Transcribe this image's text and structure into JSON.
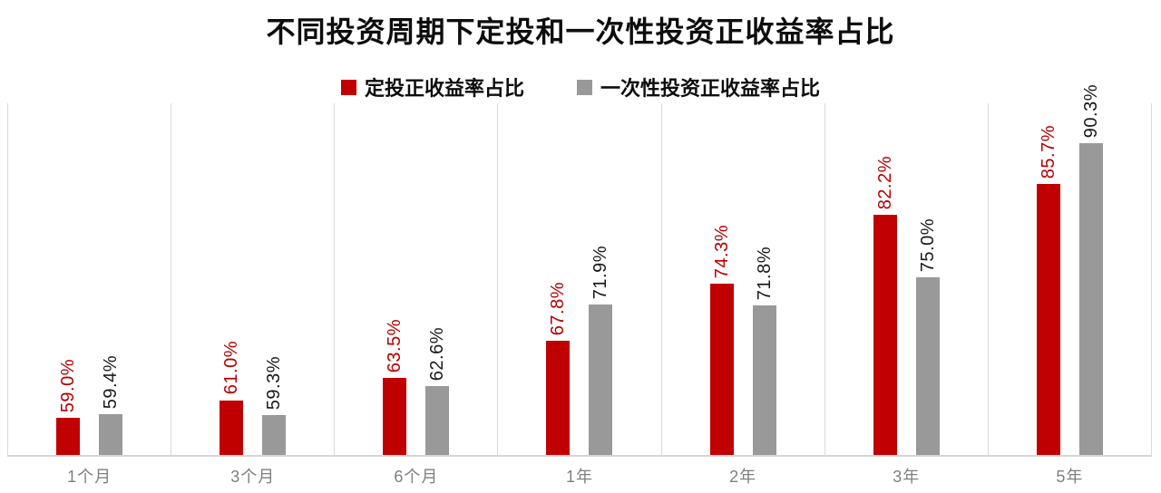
{
  "chart_data": {
    "type": "bar",
    "title": "不同投资周期下定投和一次性投资正收益率占比",
    "categories": [
      "1个月",
      "3个月",
      "6个月",
      "1年",
      "2年",
      "3年",
      "5年"
    ],
    "series": [
      {
        "name": "定投正收益率占比",
        "color": "#c00000",
        "label_color": "#b50000",
        "values": [
          59.0,
          61.0,
          63.5,
          67.8,
          74.3,
          82.2,
          85.7
        ],
        "labels": [
          "59.0%",
          "61.0%",
          "63.5%",
          "67.8%",
          "74.3%",
          "82.2%",
          "85.7%"
        ]
      },
      {
        "name": "一次性投资正收益率占比",
        "color": "#999999",
        "label_color": "#1a1a1a",
        "values": [
          59.4,
          59.3,
          62.6,
          71.9,
          71.8,
          75.0,
          90.3
        ],
        "labels": [
          "59.4%",
          "59.3%",
          "62.6%",
          "71.9%",
          "71.8%",
          "75.0%",
          "90.3%"
        ]
      }
    ],
    "xlabel": "",
    "ylabel": "",
    "ylim": [
      54.75,
      94.9
    ],
    "grid": "vertical-category-separators",
    "yaxis_visible": false,
    "legend_position": "top",
    "value_labels": "rotated-90-above-bars"
  }
}
